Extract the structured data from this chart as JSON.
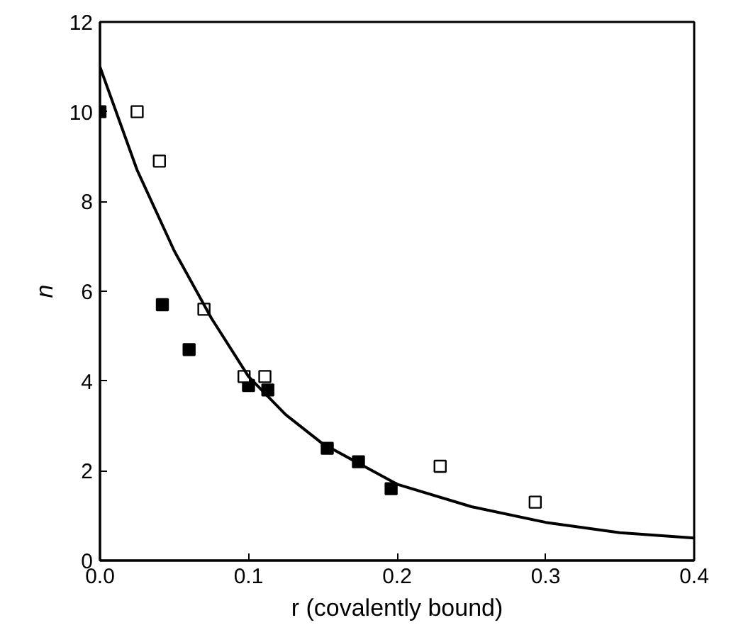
{
  "chart_data": {
    "type": "scatter",
    "xlabel": "r (covalently bound)",
    "ylabel": "n",
    "xlim": [
      0,
      0.4
    ],
    "ylim": [
      0,
      12
    ],
    "xticks": [
      {
        "value": 0,
        "label": "0.0"
      },
      0.1,
      0.2,
      0.3,
      0.4
    ],
    "yticks": [
      0,
      2,
      4,
      6,
      8,
      10,
      12
    ],
    "grid": false,
    "series": [
      {
        "marker": "square",
        "color": "#000000",
        "x": [
          0,
          0.042,
          0.06,
          0.1,
          0.113,
          0.153,
          0.174,
          0.196
        ],
        "values": [
          10,
          5.7,
          4.7,
          3.9,
          3.8,
          2.5,
          2.2,
          1.6
        ]
      },
      {
        "marker": "square",
        "color": "#ffffff",
        "x": [
          0.025,
          0.04,
          0.07,
          0.097,
          0.111,
          0.229,
          0.293
        ],
        "values": [
          10,
          8.9,
          5.6,
          4.1,
          4.1,
          2.1,
          1.3
        ]
      },
      {
        "type": "line",
        "color": "#000000",
        "line_style": "solid",
        "x": [
          0,
          0.025,
          0.05,
          0.075,
          0.1,
          0.125,
          0.15,
          0.2,
          0.25,
          0.3,
          0.35,
          0.4
        ],
        "values": [
          11,
          8.7,
          6.9,
          5.4,
          4.1,
          3.25,
          2.6,
          1.7,
          1.2,
          0.85,
          0.62,
          0.5
        ]
      }
    ]
  }
}
